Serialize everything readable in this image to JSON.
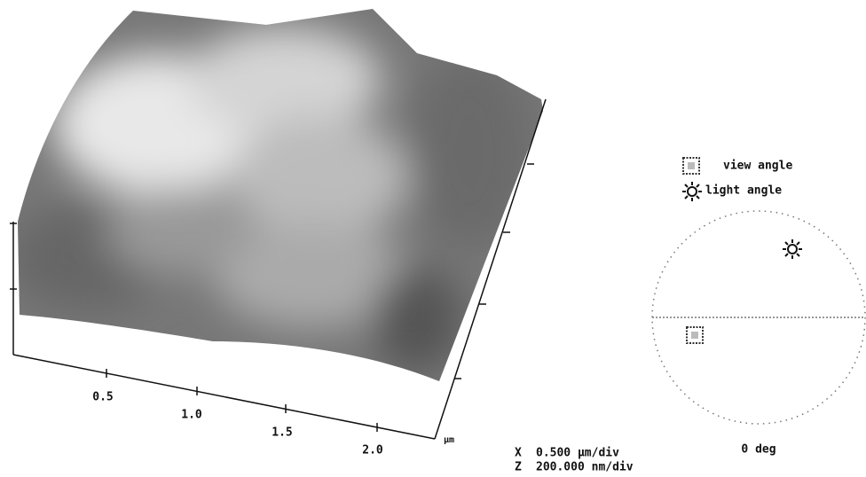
{
  "axis": {
    "ticks": [
      "0.5",
      "1.0",
      "1.5",
      "2.0"
    ],
    "unit": "µm"
  },
  "scale": {
    "x_axis": "X",
    "x_value": "0.500 µm/div",
    "z_axis": "Z",
    "z_value": "200.000 nm/div"
  },
  "legend": {
    "view": "view angle",
    "light": "light angle"
  },
  "dial": {
    "label": "0 deg"
  }
}
